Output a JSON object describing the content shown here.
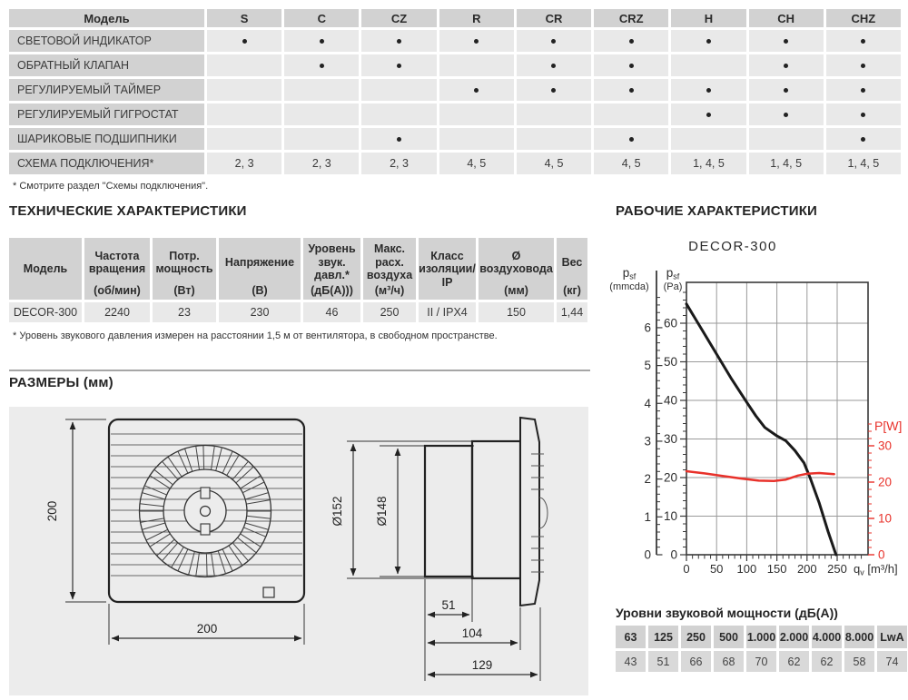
{
  "features_table": {
    "model_header": "Модель",
    "columns": [
      "S",
      "C",
      "CZ",
      "R",
      "CR",
      "CRZ",
      "H",
      "CH",
      "CHZ"
    ],
    "rows": [
      {
        "label": "СВЕТОВОЙ ИНДИКАТОР",
        "cells": [
          "•",
          "•",
          "•",
          "•",
          "•",
          "•",
          "•",
          "•",
          "•"
        ]
      },
      {
        "label": "ОБРАТНЫЙ КЛАПАН",
        "cells": [
          "",
          "•",
          "•",
          "",
          "•",
          "•",
          "",
          "•",
          "•"
        ]
      },
      {
        "label": "РЕГУЛИРУЕМЫЙ ТАЙМЕР",
        "cells": [
          "",
          "",
          "",
          "•",
          "•",
          "•",
          "•",
          "•",
          "•"
        ]
      },
      {
        "label": "РЕГУЛИРУЕМЫЙ ГИГРОСТАТ",
        "cells": [
          "",
          "",
          "",
          "",
          "",
          "",
          "•",
          "•",
          "•"
        ]
      },
      {
        "label": "ШАРИКОВЫЕ ПОДШИПНИКИ",
        "cells": [
          "",
          "",
          "•",
          "",
          "",
          "•",
          "",
          "",
          "•"
        ]
      },
      {
        "label": "СХЕМА ПОДКЛЮЧЕНИЯ*",
        "cells": [
          "2, 3",
          "2, 3",
          "2, 3",
          "4, 5",
          "4, 5",
          "4, 5",
          "1, 4, 5",
          "1, 4, 5",
          "1, 4, 5"
        ]
      }
    ],
    "footnote": "* Смотрите раздел \"Схемы подключения\"."
  },
  "tech": {
    "title": "ТЕХНИЧЕСКИЕ ХАРАКТЕРИСТИКИ",
    "columns": [
      {
        "name": "Модель",
        "unit": ""
      },
      {
        "name": "Частота вращения",
        "unit": "(об/мин)"
      },
      {
        "name": "Потр. мощность",
        "unit": "(Вт)"
      },
      {
        "name": "Напряжение",
        "unit": "(В)"
      },
      {
        "name": "Уровень звук. давл.*",
        "unit": "(дБ(А)))"
      },
      {
        "name": "Макс. расх. воздуха",
        "unit": "(м³/ч)"
      },
      {
        "name": "Класс изоляции/ IP",
        "unit": ""
      },
      {
        "name": "Ø воздуховода",
        "unit": "(мм)"
      },
      {
        "name": "Вес",
        "unit": "(кг)"
      }
    ],
    "row": [
      "DECOR-300",
      "2240",
      "23",
      "230",
      "46",
      "250",
      "II / IPX4",
      "150",
      "1,44"
    ],
    "footnote": "* Уровень звукового давления измерен на расстоянии 1,5 м от вентилятора, в свободном пространстве."
  },
  "dimensions": {
    "title": "РАЗМЕРЫ (мм)",
    "front_height": "200",
    "front_width": "200",
    "d_outer": "Ø152",
    "d_inner": "Ø148",
    "duct_len": "51",
    "body_len": "104",
    "total_len": "129"
  },
  "performance": {
    "title": "РАБОЧИЕ ХАРАКТЕРИСТИКИ"
  },
  "chart_data": {
    "type": "line",
    "title": "DECOR-300",
    "grid": true,
    "x_axis": {
      "symbol": "q",
      "subscript": "v",
      "unit": "[m³/h]",
      "ticks": [
        0,
        50,
        100,
        150,
        200,
        250
      ],
      "minor_step": 10,
      "range": [
        0,
        300
      ]
    },
    "y_axis_mmcda": {
      "symbol": "p",
      "subscript": "sf",
      "unit": "(mmcda)",
      "ticks": [
        0,
        1,
        2,
        3,
        4,
        5,
        6
      ],
      "minor_step": 0.2,
      "range": [
        0,
        7
      ]
    },
    "y_axis_pa": {
      "symbol": "p",
      "subscript": "sf",
      "unit": "(Pa)",
      "ticks": [
        0,
        10,
        20,
        30,
        40,
        50,
        60
      ],
      "minor_step": 2,
      "range": [
        0,
        70
      ]
    },
    "y_axis_power": {
      "label": "P[W]",
      "ticks": [
        0,
        10,
        20,
        30
      ],
      "minor_step": 2,
      "range": [
        0,
        37
      ],
      "color": "#e8312a"
    },
    "series": [
      {
        "id": "pressure",
        "axis": "pa",
        "color": "#1a1a1a",
        "width": 3,
        "points": [
          [
            0,
            65
          ],
          [
            25,
            58.5
          ],
          [
            50,
            52
          ],
          [
            75,
            45.5
          ],
          [
            100,
            39.5
          ],
          [
            115,
            36
          ],
          [
            130,
            33
          ],
          [
            150,
            30.8
          ],
          [
            165,
            29.5
          ],
          [
            180,
            27
          ],
          [
            195,
            23.8
          ],
          [
            205,
            20
          ],
          [
            220,
            13.5
          ],
          [
            235,
            6
          ],
          [
            248,
            0
          ]
        ]
      },
      {
        "id": "power",
        "axis": "w",
        "color": "#e8312a",
        "width": 2.5,
        "points": [
          [
            0,
            23
          ],
          [
            30,
            22.4
          ],
          [
            60,
            21.7
          ],
          [
            90,
            21
          ],
          [
            120,
            20.4
          ],
          [
            145,
            20.3
          ],
          [
            165,
            20.7
          ],
          [
            185,
            21.8
          ],
          [
            200,
            22.3
          ],
          [
            220,
            22.5
          ],
          [
            245,
            22.2
          ]
        ]
      }
    ]
  },
  "sound": {
    "title": "Уровни звуковой мощности (дБ(А))",
    "headers": [
      "63",
      "125",
      "250",
      "500",
      "1.000",
      "2.000",
      "4.000",
      "8.000",
      "LwA"
    ],
    "values": [
      "43",
      "51",
      "66",
      "68",
      "70",
      "62",
      "62",
      "58",
      "74"
    ]
  },
  "colors": {
    "header_cell": "#d2d2d2",
    "data_cell": "#e9e9e9",
    "sound_value_cell": "#d9d9d9",
    "panel_bg": "#ececec",
    "accent_red": "#e8312a",
    "grid_gray": "#9a9a9a",
    "text": "#2b2b2b"
  }
}
